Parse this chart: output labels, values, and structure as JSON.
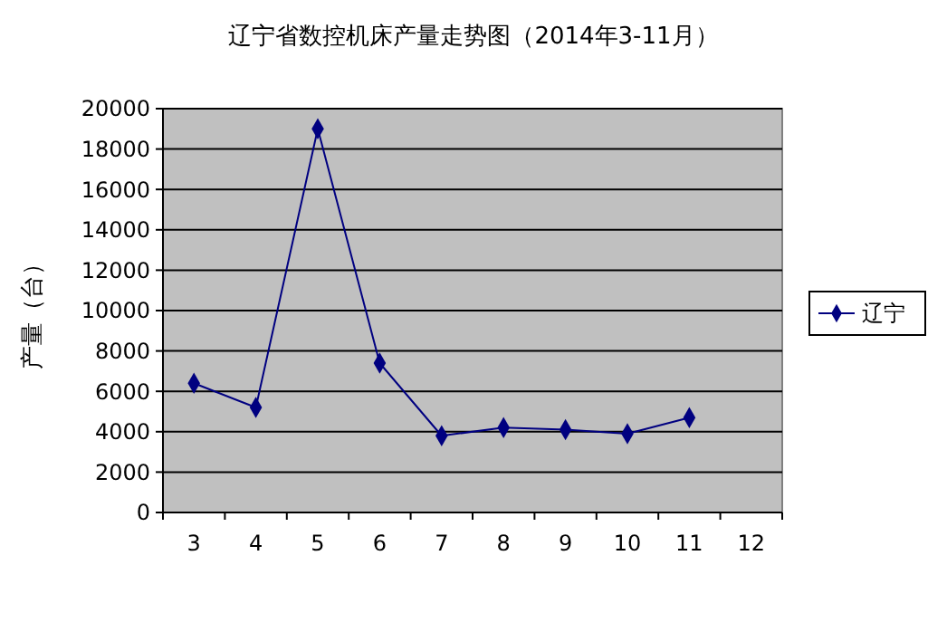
{
  "chart_data": {
    "type": "line",
    "title": "辽宁省数控机床产量走势图（2014年3-11月）",
    "ylabel": "产量（台）",
    "categories": [
      "3",
      "4",
      "5",
      "6",
      "7",
      "8",
      "9",
      "10",
      "11",
      "12"
    ],
    "series": [
      {
        "name": "辽宁",
        "color": "#000080",
        "values": [
          6400,
          5200,
          19000,
          7400,
          3800,
          4200,
          4100,
          3900,
          4700,
          null
        ]
      }
    ],
    "ylim": [
      0,
      20000
    ],
    "yticks": [
      0,
      2000,
      4000,
      6000,
      8000,
      10000,
      12000,
      14000,
      16000,
      18000,
      20000
    ],
    "grid": "y",
    "legend": "right",
    "marker": "diamond",
    "line_style": "solid"
  }
}
